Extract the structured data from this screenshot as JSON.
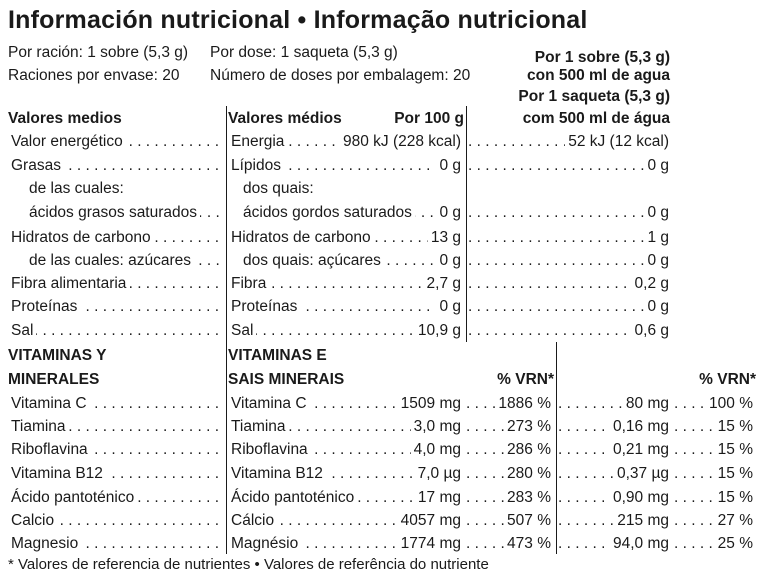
{
  "title": "Información nutricional • Informação nutricional",
  "header": {
    "es_serving": "Por ración: 1 sobre (5,3 g)",
    "es_servings_per_pack": "Raciones por envase: 20",
    "pt_serving": "Por dose: 1 saqueta (5,3 g)",
    "pt_servings_per_pack": "Número de doses por embalagem: 20",
    "per_serving_lines": [
      "Por 1 sobre (5,3 g)",
      "con 500 ml de agua",
      "Por 1 saqueta (5,3 g)",
      "com 500 ml de água"
    ]
  },
  "nutrients_header": {
    "es": "Valores medios",
    "pt": "Valores médios",
    "per100": "Por 100 g"
  },
  "nutrients": [
    {
      "es": "Valor energético",
      "pt": "Energia",
      "per100": "980 kJ (228 kcal)",
      "serving": "52 kJ (12 kcal)"
    },
    {
      "es": "Grasas",
      "pt": "Lípidos",
      "per100": "0 g",
      "serving": "0 g"
    },
    {
      "es": "de las cuales:",
      "pt": "dos quais:",
      "per100": "",
      "serving": ""
    },
    {
      "es": "ácidos grasos saturados",
      "pt": "ácidos gordos saturados",
      "per100": "0 g",
      "serving": "0 g"
    },
    {
      "es": "Hidratos de carbono",
      "pt": "Hidratos de carbono",
      "per100": "13 g",
      "serving": "1 g"
    },
    {
      "es": "de las cuales: azúcares",
      "pt": "dos quais: açúcares",
      "per100": "0 g",
      "serving": "0 g"
    },
    {
      "es": "Fibra alimentaria",
      "pt": "Fibra",
      "per100": "2,7 g",
      "serving": "0,2 g"
    },
    {
      "es": "Proteínas",
      "pt": "Proteínas",
      "per100": "0 g",
      "serving": "0 g"
    },
    {
      "es": "Sal",
      "pt": "Sal",
      "per100": "10,9 g",
      "serving": "0,6 g"
    }
  ],
  "vitamins_header": {
    "es_line1": "VITAMINAS Y",
    "es_line2": "MINERALES",
    "pt_line1": "VITAMINAS E",
    "pt_line2": "SAIS MINERAIS",
    "vrn1": "% VRN*",
    "vrn2": "% VRN*"
  },
  "vitamins": [
    {
      "es": "Vitamina C",
      "pt": "Vitamina C",
      "per100": "1509 mg",
      "vrn100": "1886 %",
      "serving": "80 mg",
      "vrn_serving": "100 %"
    },
    {
      "es": "Tiamina",
      "pt": "Tiamina",
      "per100": "3,0 mg",
      "vrn100": "273 %",
      "serving": "0,16 mg",
      "vrn_serving": "15 %"
    },
    {
      "es": "Riboflavina",
      "pt": "Riboflavina",
      "per100": "4,0 mg",
      "vrn100": "286 %",
      "serving": "0,21 mg",
      "vrn_serving": "15 %"
    },
    {
      "es": "Vitamina B12",
      "pt": "Vitamina B12",
      "per100": "7,0 µg",
      "vrn100": "280 %",
      "serving": "0,37 µg",
      "vrn_serving": "15 %"
    },
    {
      "es": "Ácido pantoténico",
      "pt": "Ácido pantoténico",
      "per100": "17 mg",
      "vrn100": "283 %",
      "serving": "0,90 mg",
      "vrn_serving": "15 %"
    },
    {
      "es": "Calcio",
      "pt": "Cálcio",
      "per100": "4057 mg",
      "vrn100": "507 %",
      "serving": "215 mg",
      "vrn_serving": "27 %"
    },
    {
      "es": "Magnesio",
      "pt": "Magnésio",
      "per100": "1774 mg",
      "vrn100": "473 %",
      "serving": "94,0 mg",
      "vrn_serving": "25 %"
    }
  ],
  "footnote": "* Valores de referencia de nutrientes • Valores de referência do nutriente"
}
